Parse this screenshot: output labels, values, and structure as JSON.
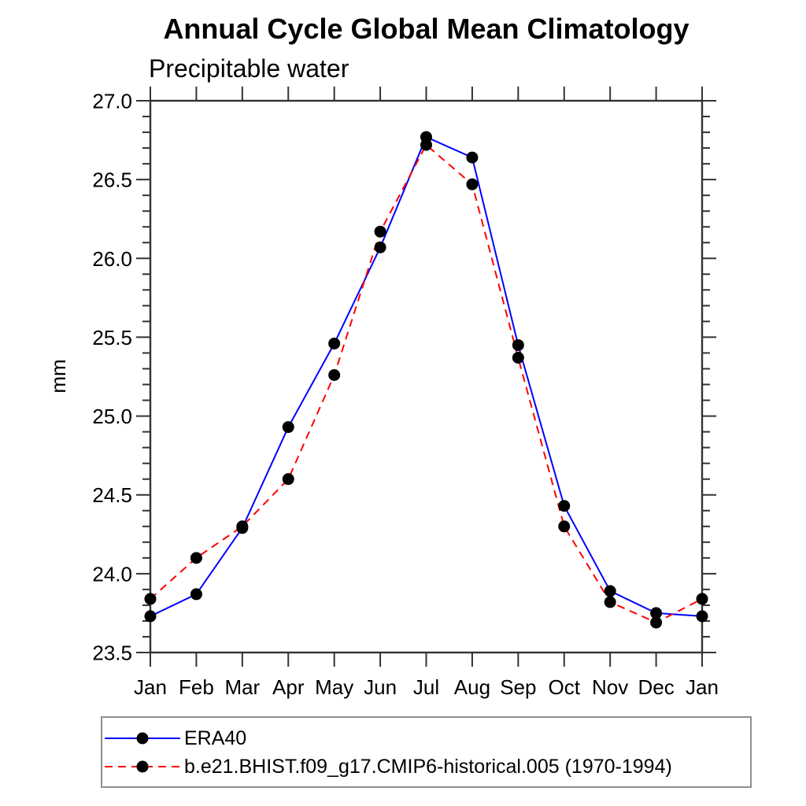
{
  "title": "Annual Cycle Global Mean Climatology",
  "subtitle": "Precipitable water",
  "ylabel": "mm",
  "chart_data": {
    "type": "line",
    "categories": [
      "Jan",
      "Feb",
      "Mar",
      "Apr",
      "May",
      "Jun",
      "Jul",
      "Aug",
      "Sep",
      "Oct",
      "Nov",
      "Dec",
      "Jan"
    ],
    "series": [
      {
        "name": "ERA40",
        "color": "#0000ff",
        "line_style": "solid",
        "marker": "circle",
        "values": [
          23.73,
          23.87,
          24.29,
          24.93,
          25.46,
          26.07,
          26.77,
          26.64,
          25.45,
          24.43,
          23.89,
          23.75,
          23.73
        ]
      },
      {
        "name": "b.e21.BHIST.f09_g17.CMIP6-historical.005 (1970-1994)",
        "color": "#ff0000",
        "line_style": "dashed",
        "marker": "circle",
        "values": [
          23.84,
          24.1,
          24.3,
          24.6,
          25.26,
          26.17,
          26.72,
          26.47,
          25.37,
          24.3,
          23.82,
          23.69,
          23.84
        ]
      }
    ],
    "marker_color": "#000000",
    "ylim": [
      23.5,
      27.0
    ],
    "y_major_step": 0.5,
    "y_minor_step": 0.1,
    "y_tick_label_format": "one_decimal",
    "grid": false,
    "legend_position": "bottom-left"
  }
}
